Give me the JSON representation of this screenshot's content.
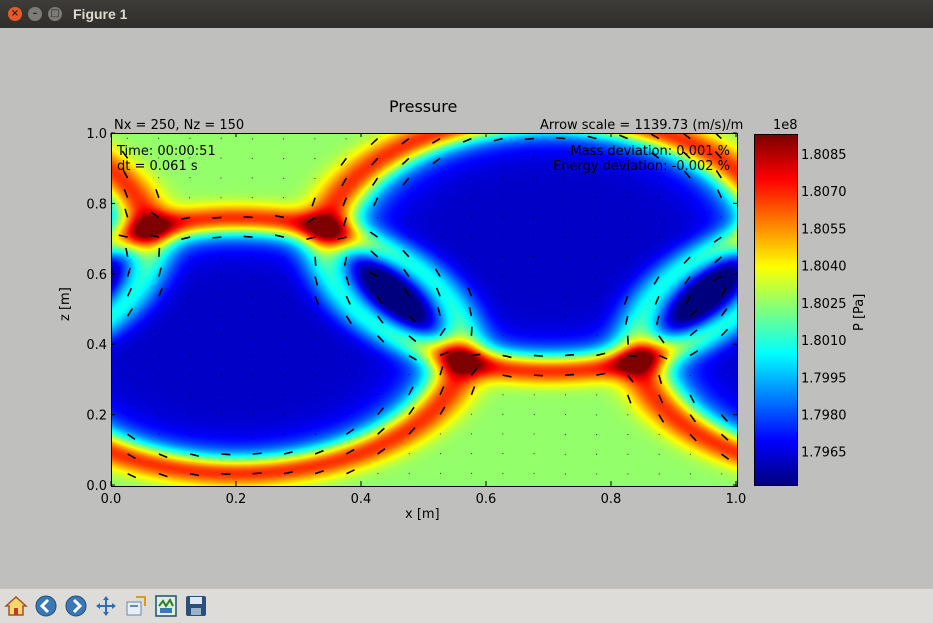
{
  "window": {
    "title": "Figure 1"
  },
  "chart": {
    "title": "Pressure",
    "subtitle_left": "Nx = 250, Nz = 150",
    "subtitle_right": "Arrow scale = 1139.73 (m/s)/m",
    "time_label": "Time: 00:00:51",
    "dt_label": "dt = 0.061 s",
    "mass_label": "Mass deviation: 0.001 %",
    "energy_label": "Energy deviation: -0.002 %",
    "colorbar_label": "P [Pa]",
    "colorbar_multiplier": "1e8"
  },
  "chart_data": {
    "type": "heatmap",
    "title": "Pressure",
    "xlabel": "x [m]",
    "ylabel": "z [m]",
    "xlim": [
      0.0,
      1.0
    ],
    "ylim": [
      0.0,
      1.0
    ],
    "xticks": [
      "0.0",
      "0.2",
      "0.4",
      "0.6",
      "0.8",
      "1.0"
    ],
    "yticks": [
      "0.0",
      "0.2",
      "0.4",
      "0.6",
      "0.8",
      "1.0"
    ],
    "colorbar": {
      "label": "P [Pa]",
      "multiplier": "1e8",
      "range": [
        1.7952,
        1.8093
      ],
      "ticks": [
        "1.7965",
        "1.7980",
        "1.7995",
        "1.8010",
        "1.8025",
        "1.8040",
        "1.8055",
        "1.8070",
        "1.8085"
      ],
      "colormap": "jet"
    },
    "features": [
      {
        "kind": "low-pressure vortex",
        "cx": 0.2,
        "cz": 0.4,
        "r": 0.34
      },
      {
        "kind": "low-pressure vortex",
        "cx": 0.7,
        "cz": 0.69,
        "r": 0.34
      }
    ],
    "quiver": {
      "label": "Arrow scale = 1139.73 (m/s)/m"
    }
  },
  "toolbar": {
    "buttons": [
      {
        "name": "home-icon",
        "label": "Home"
      },
      {
        "name": "back-icon",
        "label": "Back"
      },
      {
        "name": "forward-icon",
        "label": "Forward"
      },
      {
        "name": "pan-icon",
        "label": "Pan"
      },
      {
        "name": "zoom-icon",
        "label": "Zoom"
      },
      {
        "name": "subplots-icon",
        "label": "Subplots"
      },
      {
        "name": "save-icon",
        "label": "Save"
      }
    ]
  }
}
